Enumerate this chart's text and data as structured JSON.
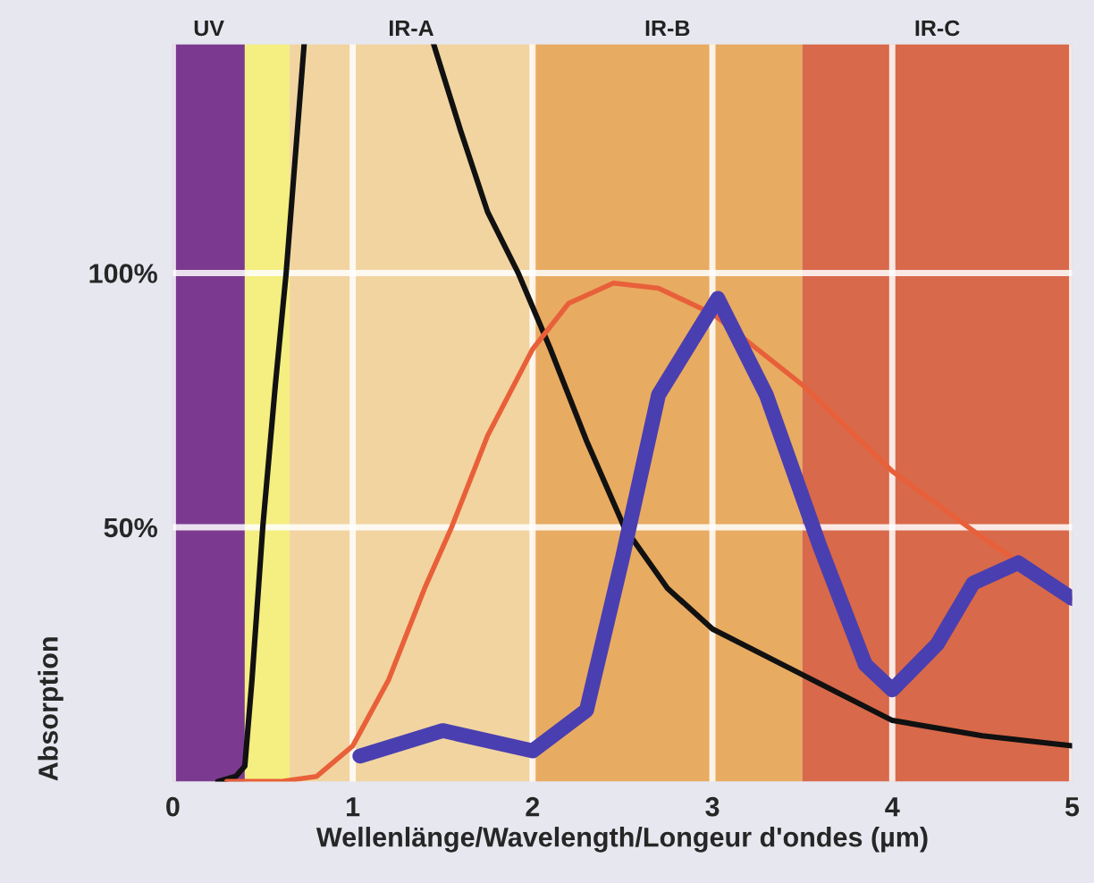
{
  "chart_data": {
    "type": "line",
    "xlabel": "Wellenlänge/Wavelength/Longeur d'ondes (µm)",
    "ylabel": "Absorption",
    "xlim": [
      0,
      5
    ],
    "ylim": [
      0,
      145
    ],
    "xticks": [
      0,
      1,
      2,
      3,
      4,
      5
    ],
    "yticks": [
      {
        "value": 50,
        "label": "50%"
      },
      {
        "value": 100,
        "label": "100%"
      }
    ],
    "grid": true,
    "marker": "none",
    "line_style": "solid",
    "bands": [
      {
        "axis": "x",
        "from": 0,
        "to": 0.4,
        "label": "UV",
        "color": "#7b3a8f"
      },
      {
        "axis": "x",
        "from": 0.4,
        "to": 0.65,
        "label": null,
        "color": "#f5ee80"
      },
      {
        "axis": "x",
        "from": 0.65,
        "to": 2,
        "label": "IR-A",
        "color": "#f2d4a0"
      },
      {
        "axis": "x",
        "from": 2,
        "to": 3.5,
        "label": "IR-B",
        "color": "#e8ab62"
      },
      {
        "axis": "x",
        "from": 3.5,
        "to": 5,
        "label": "IR-C",
        "color": "#d8694a"
      }
    ],
    "series": [
      {
        "color": "#111111",
        "x": [
          0.25,
          0.35,
          0.4,
          0.44,
          0.5,
          0.57,
          0.63,
          0.73
        ],
        "values": [
          0,
          1,
          3,
          20,
          50,
          78,
          100,
          145
        ]
      },
      {
        "color": "#111111",
        "x": [
          1.45,
          1.6,
          1.75,
          1.92,
          2.1,
          2.3,
          2.51,
          2.75,
          3,
          3.5,
          4,
          4.5,
          5
        ],
        "values": [
          145,
          128,
          112,
          100,
          85,
          67,
          50,
          38,
          30,
          21,
          12,
          9,
          7
        ]
      },
      {
        "color": "#e8603a",
        "x": [
          0.3,
          0.6,
          0.8,
          1,
          1.2,
          1.4,
          1.55,
          1.75,
          2,
          2.2,
          2.45,
          2.7,
          3,
          3.5,
          4,
          4.5,
          5
        ],
        "values": [
          0,
          0,
          1,
          7,
          20,
          38,
          50,
          68,
          85,
          94,
          98,
          97,
          92,
          78,
          61,
          48,
          36
        ]
      },
      {
        "color": "#4a3fb0",
        "x": [
          1.04,
          1.5,
          2,
          2.3,
          2.5,
          2.7,
          3.03,
          3.3,
          3.6,
          3.85,
          4,
          4.25,
          4.45,
          4.7,
          5
        ],
        "values": [
          5,
          10,
          6,
          14,
          44,
          76,
          95,
          76,
          46,
          23,
          18,
          27,
          39,
          43,
          36
        ]
      }
    ]
  }
}
